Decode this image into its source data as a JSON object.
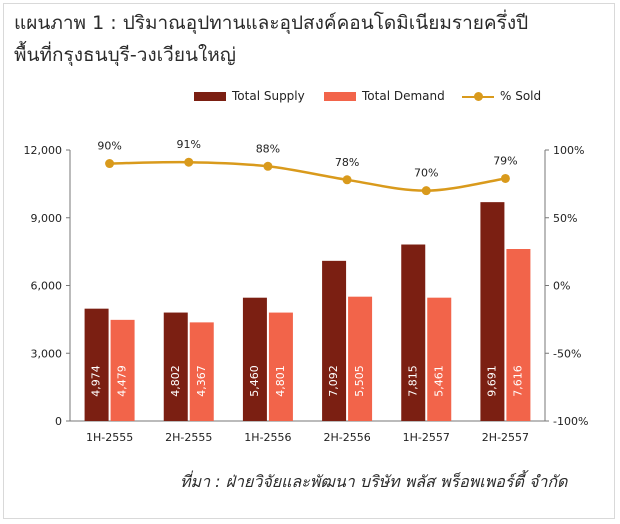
{
  "title": {
    "line1": "แผนภาพ 1 : ปริมาณอุปทานและอุปสงค์คอนโดมิเนียมรายครึ่งปี",
    "line2": "พื้นที่กรุงธนบุรี-วงเวียนใหญ่"
  },
  "source": "ที่มา : ฝ่ายวิจัยและพัฒนา บริษัท พลัส พร็อพเพอร์ตี้ จำกัด",
  "colors": {
    "supply": "#7b1f12",
    "demand": "#f2644a",
    "sold": "#d99a1c",
    "axis": "#777777"
  },
  "chart_data": {
    "type": "bar",
    "categories": [
      "1H-2555",
      "2H-2555",
      "1H-2556",
      "2H-2556",
      "1H-2557",
      "2H-2557"
    ],
    "series": [
      {
        "name": "Total Supply",
        "type": "bar",
        "axis": "left",
        "values": [
          4974,
          4802,
          5460,
          7092,
          7815,
          9691
        ],
        "labels": [
          "4,974",
          "4,802",
          "5,460",
          "7,092",
          "7,815",
          "9,691"
        ]
      },
      {
        "name": "Total Demand",
        "type": "bar",
        "axis": "left",
        "values": [
          4479,
          4367,
          4801,
          5505,
          5461,
          7616
        ],
        "labels": [
          "4,479",
          "4,367",
          "4,801",
          "5,505",
          "5,461",
          "7,616"
        ]
      },
      {
        "name": "% Sold",
        "type": "line",
        "axis": "right",
        "values": [
          90,
          91,
          88,
          78,
          70,
          79
        ],
        "labels": [
          "90%",
          "91%",
          "88%",
          "78%",
          "70%",
          "79%"
        ]
      }
    ],
    "y_left": {
      "min": 0,
      "max": 12000,
      "ticks": [
        "0",
        "3,000",
        "6,000",
        "9,000",
        "12,000"
      ],
      "tick_values": [
        0,
        3000,
        6000,
        9000,
        12000
      ]
    },
    "y_right": {
      "min": -100,
      "max": 100,
      "ticks": [
        "-100%",
        "-50%",
        "0%",
        "50%",
        "100%"
      ],
      "tick_values": [
        -100,
        -50,
        0,
        50,
        100
      ]
    },
    "legend": "top",
    "grid": false
  }
}
